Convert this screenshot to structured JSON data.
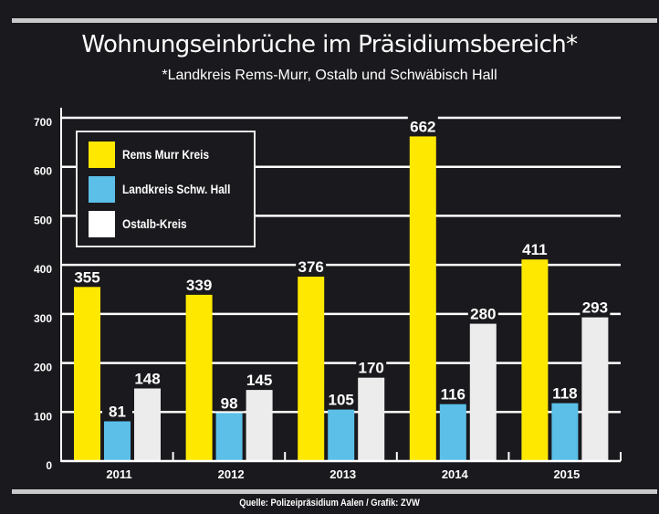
{
  "header": {
    "title": "Wohnungseinbrüche im Präsidiumsbereich*",
    "subtitle": "*Landkreis Rems-Murr, Ostalb und Schwäbisch Hall"
  },
  "footer": {
    "source": "Quelle: Polizeipräsidium Aalen / Grafik: ZVW"
  },
  "colors": {
    "background": "#1a191d",
    "rems_murr": "#ffe800",
    "schw_hall": "#5bbfe8",
    "ostalb": "#ececec",
    "grid": "#ffffff",
    "rule": "#c9c9cb"
  },
  "chart_data": {
    "type": "bar",
    "title": "Wohnungseinbrüche im Präsidiumsbereich*",
    "subtitle": "*Landkreis Rems-Murr, Ostalb und Schwäbisch Hall",
    "xlabel": "",
    "ylabel": "",
    "categories": [
      "2011",
      "2012",
      "2013",
      "2014",
      "2015"
    ],
    "series": [
      {
        "name": "Rems Murr Kreis",
        "color": "#ffe800",
        "values": [
          355,
          339,
          376,
          662,
          411
        ]
      },
      {
        "name": "Landkreis Schw. Hall",
        "color": "#5bbfe8",
        "values": [
          81,
          98,
          105,
          116,
          118
        ]
      },
      {
        "name": "Ostalb-Kreis",
        "color": "#ececec",
        "values": [
          148,
          145,
          170,
          280,
          293
        ]
      }
    ],
    "ylim": [
      0,
      700
    ],
    "yticks": [
      0,
      100,
      200,
      300,
      400,
      500,
      600,
      700
    ],
    "grid": true,
    "legend_position": "top-left",
    "data_labels": true
  }
}
